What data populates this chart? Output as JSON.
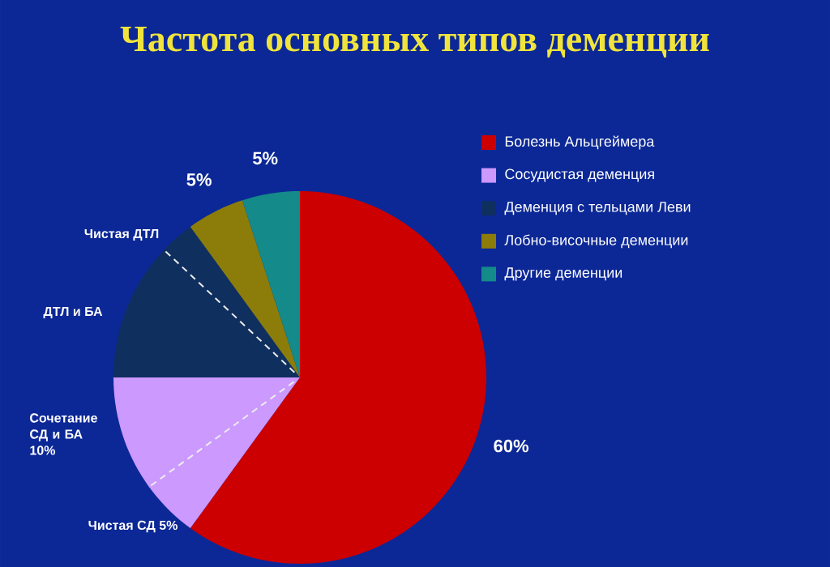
{
  "chart_data": {
    "type": "pie",
    "title": "Частота основных типов деменции",
    "categories": [
      "Болезнь Альцгеймера",
      "Сосудистая деменция",
      "Деменция с тельцами Леви",
      "Лобно-височные деменции",
      "Другие деменции"
    ],
    "values": [
      60,
      15,
      15,
      5,
      5
    ],
    "colors": [
      "#cc0000",
      "#cc99ff",
      "#0f2f5f",
      "#8c7d0a",
      "#158a8a"
    ],
    "value_labels": [
      "60%",
      null,
      null,
      "5%",
      "5%"
    ],
    "annotations": [
      "Чистая ДТЛ",
      "ДТЛ и БА",
      "Сочетание СД и БА 10%",
      "Чистая СД 5%"
    ],
    "legend": "right"
  }
}
